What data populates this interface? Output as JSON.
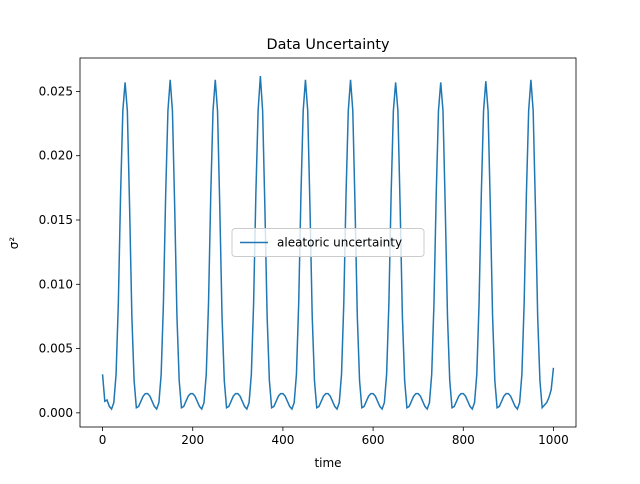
{
  "chart_data": {
    "type": "line",
    "title": "Data Uncertainty",
    "xlabel": "time",
    "ylabel": "σ²",
    "x": [
      0,
      5,
      10,
      15,
      20,
      25,
      30,
      35,
      40,
      45,
      50,
      55,
      60,
      65,
      70,
      75,
      80,
      85,
      90,
      95,
      100,
      105,
      110,
      115,
      120,
      125,
      130,
      135,
      140,
      145,
      150,
      155,
      160,
      165,
      170,
      175,
      180,
      185,
      190,
      195,
      200,
      205,
      210,
      215,
      220,
      225,
      230,
      235,
      240,
      245,
      250,
      255,
      260,
      265,
      270,
      275,
      280,
      285,
      290,
      295,
      300,
      305,
      310,
      315,
      320,
      325,
      330,
      335,
      340,
      345,
      350,
      355,
      360,
      365,
      370,
      375,
      380,
      385,
      390,
      395,
      400,
      405,
      410,
      415,
      420,
      425,
      430,
      435,
      440,
      445,
      450,
      455,
      460,
      465,
      470,
      475,
      480,
      485,
      490,
      495,
      500,
      505,
      510,
      515,
      520,
      525,
      530,
      535,
      540,
      545,
      550,
      555,
      560,
      565,
      570,
      575,
      580,
      585,
      590,
      595,
      600,
      605,
      610,
      615,
      620,
      625,
      630,
      635,
      640,
      645,
      650,
      655,
      660,
      665,
      670,
      675,
      680,
      685,
      690,
      695,
      700,
      705,
      710,
      715,
      720,
      725,
      730,
      735,
      740,
      745,
      750,
      755,
      760,
      765,
      770,
      775,
      780,
      785,
      790,
      795,
      800,
      805,
      810,
      815,
      820,
      825,
      830,
      835,
      840,
      845,
      850,
      855,
      860,
      865,
      870,
      875,
      880,
      885,
      890,
      895,
      900,
      905,
      910,
      915,
      920,
      925,
      930,
      935,
      940,
      945,
      950,
      955,
      960,
      965,
      970,
      975,
      980,
      985,
      990,
      995,
      1000
    ],
    "series": [
      {
        "name": "aleatoric uncertainty",
        "color": "#1f77b4",
        "values": [
          0.003,
          0.0009,
          0.001,
          0.0005,
          0.0003,
          0.0008,
          0.003,
          0.0085,
          0.017,
          0.0235,
          0.0257,
          0.0235,
          0.016,
          0.0075,
          0.0025,
          0.0004,
          0.0005,
          0.0009,
          0.0013,
          0.0015,
          0.0015,
          0.0013,
          0.0009,
          0.0005,
          0.0003,
          0.0008,
          0.003,
          0.0085,
          0.017,
          0.0235,
          0.0259,
          0.0235,
          0.016,
          0.0075,
          0.0025,
          0.0004,
          0.0005,
          0.0009,
          0.0013,
          0.0015,
          0.0015,
          0.0013,
          0.0009,
          0.0005,
          0.0003,
          0.0008,
          0.003,
          0.0085,
          0.017,
          0.0235,
          0.0259,
          0.0235,
          0.016,
          0.0075,
          0.0025,
          0.0004,
          0.0005,
          0.0009,
          0.0013,
          0.0015,
          0.0015,
          0.0013,
          0.0009,
          0.0005,
          0.0003,
          0.0008,
          0.003,
          0.0085,
          0.017,
          0.0235,
          0.0262,
          0.0235,
          0.016,
          0.0075,
          0.0025,
          0.0004,
          0.0005,
          0.0009,
          0.0013,
          0.0015,
          0.0015,
          0.0013,
          0.0009,
          0.0005,
          0.0003,
          0.0008,
          0.003,
          0.0085,
          0.017,
          0.0235,
          0.0259,
          0.0235,
          0.016,
          0.0075,
          0.0025,
          0.0004,
          0.0005,
          0.0009,
          0.0013,
          0.0015,
          0.0015,
          0.0013,
          0.0009,
          0.0005,
          0.0003,
          0.0008,
          0.003,
          0.0085,
          0.017,
          0.0235,
          0.0259,
          0.0235,
          0.016,
          0.0075,
          0.0025,
          0.0004,
          0.0005,
          0.0009,
          0.0013,
          0.0015,
          0.0015,
          0.0013,
          0.0009,
          0.0005,
          0.0003,
          0.0008,
          0.003,
          0.0085,
          0.017,
          0.0235,
          0.0257,
          0.0235,
          0.016,
          0.0075,
          0.0025,
          0.0004,
          0.0005,
          0.0009,
          0.0013,
          0.0015,
          0.0015,
          0.0013,
          0.0009,
          0.0005,
          0.0003,
          0.0008,
          0.003,
          0.0085,
          0.017,
          0.0235,
          0.0257,
          0.0235,
          0.016,
          0.0075,
          0.0025,
          0.0004,
          0.0005,
          0.0009,
          0.0013,
          0.0015,
          0.0015,
          0.0013,
          0.0009,
          0.0005,
          0.0003,
          0.0008,
          0.003,
          0.0085,
          0.017,
          0.0235,
          0.0258,
          0.0235,
          0.016,
          0.0075,
          0.0025,
          0.0004,
          0.0005,
          0.0009,
          0.0013,
          0.0015,
          0.0015,
          0.0013,
          0.0009,
          0.0005,
          0.0003,
          0.0008,
          0.003,
          0.0085,
          0.017,
          0.0235,
          0.0259,
          0.0235,
          0.016,
          0.0075,
          0.0025,
          0.0004,
          0.0006,
          0.0008,
          0.0012,
          0.0018,
          0.0035
        ]
      }
    ],
    "xlim": [
      -50,
      1050
    ],
    "xticks": [
      0,
      200,
      400,
      600,
      800,
      1000
    ],
    "ylim": [
      -0.0011,
      0.0276
    ],
    "yticks": [
      {
        "value": 0,
        "label": "0.000"
      },
      {
        "value": 0.005,
        "label": "0.005"
      },
      {
        "value": 0.01,
        "label": "0.010"
      },
      {
        "value": 0.015,
        "label": "0.015"
      },
      {
        "value": 0.02,
        "label": "0.020"
      },
      {
        "value": 0.025,
        "label": "0.025"
      }
    ],
    "legend": "center"
  }
}
